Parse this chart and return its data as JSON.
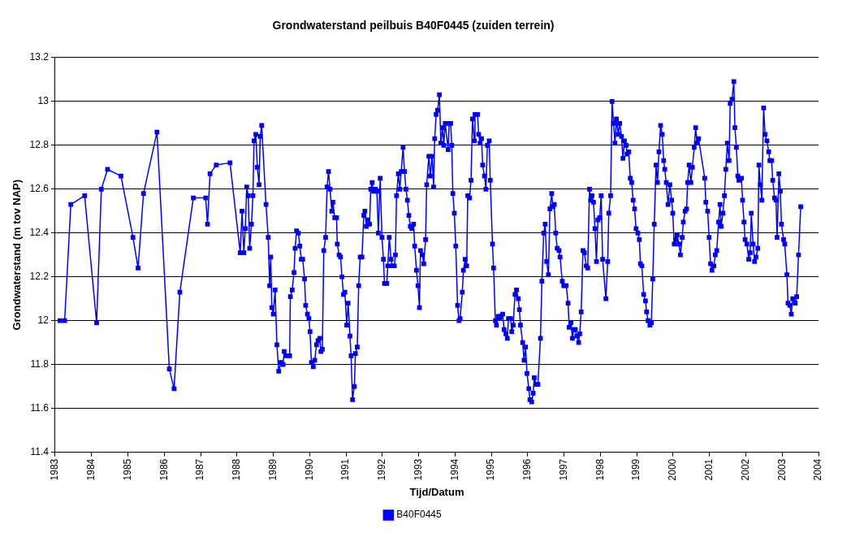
{
  "chart_data": {
    "type": "line",
    "title": "Grondwaterstand peilbuis B40F0445 (zuiden terrein)",
    "xlabel": "Tijd/Datum",
    "ylabel": "Grondwaterstand (m tov NAP)",
    "xlim": [
      1983,
      2004
    ],
    "xticks": [
      1983,
      1984,
      1985,
      1986,
      1987,
      1988,
      1989,
      1990,
      1991,
      1992,
      1993,
      1994,
      1995,
      1996,
      1997,
      1998,
      1999,
      2000,
      2001,
      2002,
      2003,
      2004
    ],
    "ylim": [
      11.4,
      13.2
    ],
    "yticks": [
      11.4,
      11.6,
      11.8,
      12,
      12.2,
      12.4,
      12.6,
      12.8,
      13,
      13.2
    ],
    "grid": "y",
    "legend": "bottom",
    "marker": "square",
    "line_style": "solid",
    "series": [
      {
        "name": "B40F0445",
        "color": "#0000ff",
        "x": [
          1983.13,
          1983.26,
          1983.43,
          1983.81,
          1984.14,
          1984.27,
          1984.44,
          1984.81,
          1985.14,
          1985.28,
          1985.43,
          1985.8,
          1986.14,
          1986.27,
          1986.43,
          1986.8,
          1987.14,
          1987.19,
          1987.26,
          1987.43,
          1987.81,
          1988.09,
          1988.14,
          1988.19,
          1988.23,
          1988.27,
          1988.31,
          1988.35,
          1988.4,
          1988.44,
          1988.47,
          1988.52,
          1988.56,
          1988.61,
          1988.64,
          1988.68,
          1988.8,
          1988.86,
          1988.9,
          1988.93,
          1988.96,
          1989,
          1989.05,
          1989.1,
          1989.15,
          1989.21,
          1989.27,
          1989.3,
          1989.36,
          1989.45,
          1989.47,
          1989.52,
          1989.57,
          1989.6,
          1989.64,
          1989.69,
          1989.73,
          1989.77,
          1989.81,
          1989.86,
          1989.89,
          1989.94,
          1989.98,
          1990.01,
          1990.05,
          1990.1,
          1990.14,
          1990.19,
          1990.23,
          1990.28,
          1990.31,
          1990.35,
          1990.39,
          1990.44,
          1990.48,
          1990.52,
          1990.56,
          1990.61,
          1990.64,
          1990.69,
          1990.74,
          1990.76,
          1990.81,
          1990.85,
          1990.89,
          1990.93,
          1990.97,
          1991.02,
          1991.06,
          1991.11,
          1991.14,
          1991.18,
          1991.23,
          1991.26,
          1991.31,
          1991.35,
          1991.39,
          1991.44,
          1991.49,
          1991.52,
          1991.56,
          1991.6,
          1991.65,
          1991.68,
          1991.72,
          1991.76,
          1991.81,
          1991.85,
          1991.89,
          1991.94,
          1991.99,
          1992.03,
          1992.06,
          1992.12,
          1992.15,
          1992.19,
          1992.24,
          1992.27,
          1992.33,
          1992.36,
          1992.39,
          1992.44,
          1992.48,
          1992.52,
          1992.57,
          1992.61,
          1992.65,
          1992.69,
          1992.73,
          1992.77,
          1992.81,
          1992.86,
          1992.89,
          1992.94,
          1992.98,
          1993.02,
          1993.05,
          1993.1,
          1993.14,
          1993.19,
          1993.22,
          1993.28,
          1993.32,
          1993.37,
          1993.41,
          1993.44,
          1993.48,
          1993.52,
          1993.57,
          1993.61,
          1993.66,
          1993.69,
          1993.73,
          1993.81,
          1993.84,
          1993.88,
          1993.91,
          1993.94,
          1993.98,
          1994.02,
          1994.07,
          1994.11,
          1994.14,
          1994.2,
          1994.23,
          1994.28,
          1994.32,
          1994.35,
          1994.4,
          1994.44,
          1994.48,
          1994.53,
          1994.55,
          1994.62,
          1994.65,
          1994.69,
          1994.73,
          1994.76,
          1994.81,
          1994.85,
          1994.89,
          1994.94,
          1994.97,
          1995.03,
          1995.06,
          1995.11,
          1995.14,
          1995.19,
          1995.23,
          1995.26,
          1995.31,
          1995.35,
          1995.4,
          1995.44,
          1995.47,
          1995.53,
          1995.56,
          1995.6,
          1995.65,
          1995.69,
          1995.74,
          1995.77,
          1995.8,
          1995.86,
          1995.9,
          1995.94,
          1995.98,
          1996.03,
          1996.06,
          1996.11,
          1996.15,
          1996.18,
          1996.23,
          1996.28,
          1996.35,
          1996.39,
          1996.44,
          1996.48,
          1996.52,
          1996.57,
          1996.61,
          1996.66,
          1996.69,
          1996.73,
          1996.77,
          1996.81,
          1996.86,
          1996.89,
          1996.95,
          1996.99,
          1997.06,
          1997.11,
          1997.14,
          1997.19,
          1997.23,
          1997.27,
          1997.31,
          1997.35,
          1997.4,
          1997.43,
          1997.47,
          1997.52,
          1997.56,
          1997.61,
          1997.65,
          1997.7,
          1997.73,
          1997.77,
          1997.81,
          1997.85,
          1997.89,
          1997.93,
          1997.98,
          1998.02,
          1998.06,
          1998.15,
          1998.2,
          1998.23,
          1998.28,
          1998.32,
          1998.36,
          1998.4,
          1998.44,
          1998.49,
          1998.53,
          1998.58,
          1998.62,
          1998.66,
          1998.71,
          1998.73,
          1998.78,
          1998.82,
          1998.86,
          1998.9,
          1998.94,
          1998.98,
          1999.03,
          1999.07,
          1999.1,
          1999.14,
          1999.19,
          1999.24,
          1999.27,
          1999.31,
          1999.36,
          1999.4,
          1999.44,
          1999.48,
          1999.53,
          1999.57,
          1999.61,
          1999.655,
          1999.7,
          1999.74,
          1999.77,
          1999.81,
          1999.86,
          1999.91,
          1999.96,
          1999.99,
          2000.03,
          2000.07,
          2000.11,
          2000.16,
          2000.2,
          2000.25,
          2000.28,
          2000.33,
          2000.37,
          2000.4,
          2000.44,
          2000.49,
          2000.53,
          2000.58,
          2000.62,
          2000.66,
          2000.7,
          2000.87,
          2000.9,
          2000.95,
          2000.99,
          2001.03,
          2001.07,
          2001.12,
          2001.16,
          2001.2,
          2001.25,
          2001.29,
          2001.32,
          2001.37,
          2001.41,
          2001.45,
          2001.49,
          2001.54,
          2001.57,
          2001.62,
          2001.67,
          2001.7,
          2001.74,
          2001.78,
          2001.81,
          2001.88,
          2001.91,
          2001.95,
          2001.98,
          2002.03,
          2002.08,
          2002.12,
          2002.15,
          2002.2,
          2002.24,
          2002.28,
          2002.33,
          2002.36,
          2002.4,
          2002.44,
          2002.49,
          2002.53,
          2002.58,
          2002.63,
          2002.66,
          2002.71,
          2002.74,
          2002.79,
          2002.83,
          2002.86,
          2002.91,
          2002.95,
          2002.98,
          2003.04,
          2003.07,
          2003.13,
          2003.16,
          2003.21,
          2003.25,
          2003.29,
          2003.36,
          2003.4,
          2003.45,
          2003.51
        ],
        "values": [
          12,
          12,
          12.53,
          12.57,
          11.99,
          12.6,
          12.69,
          12.66,
          12.38,
          12.24,
          12.58,
          12.86,
          11.78,
          11.69,
          12.13,
          12.56,
          12.56,
          12.44,
          12.67,
          12.71,
          12.72,
          12.31,
          12.5,
          12.31,
          12.42,
          12.61,
          12.57,
          12.33,
          12.44,
          12.57,
          12.82,
          12.85,
          12.7,
          12.62,
          12.84,
          12.89,
          12.53,
          12.38,
          12.16,
          12.29,
          12.06,
          12.03,
          12.14,
          11.89,
          11.77,
          11.81,
          11.8,
          11.86,
          11.84,
          11.84,
          12.11,
          12.14,
          12.22,
          12.33,
          12.41,
          12.4,
          12.34,
          12.28,
          12.28,
          12.19,
          12.07,
          12.03,
          12.01,
          11.95,
          11.81,
          11.79,
          11.82,
          11.89,
          11.91,
          11.92,
          11.86,
          11.87,
          12.32,
          12.38,
          12.61,
          12.68,
          12.6,
          12.5,
          12.54,
          12.47,
          12.47,
          12.35,
          12.3,
          12.29,
          12.2,
          12.12,
          12.13,
          11.98,
          12.08,
          11.93,
          11.84,
          11.64,
          11.7,
          11.85,
          11.88,
          12.16,
          12.29,
          12.29,
          12.48,
          12.5,
          12.43,
          12.46,
          12.44,
          12.6,
          12.63,
          12.59,
          12.6,
          12.59,
          12.4,
          12.65,
          12.38,
          12.28,
          12.17,
          12.17,
          12.25,
          12.38,
          12.28,
          12.25,
          12.25,
          12.3,
          12.57,
          12.67,
          12.6,
          12.68,
          12.79,
          12.68,
          12.6,
          12.55,
          12.48,
          12.43,
          12.42,
          12.44,
          12.34,
          12.23,
          12.16,
          12.06,
          12.32,
          12.3,
          12.26,
          12.37,
          12.62,
          12.75,
          12.66,
          12.75,
          12.61,
          12.83,
          12.94,
          12.96,
          13.03,
          12.81,
          12.88,
          12.8,
          12.9,
          12.78,
          12.9,
          12.9,
          12.8,
          12.58,
          12.49,
          12.34,
          12.07,
          12,
          12.01,
          12.13,
          12.23,
          12.28,
          12.25,
          12.57,
          12.56,
          12.64,
          12.92,
          12.82,
          12.94,
          12.94,
          12.85,
          12.81,
          12.83,
          12.71,
          12.66,
          12.6,
          12.8,
          12.82,
          12.64,
          12.35,
          12.24,
          12,
          11.98,
          12.02,
          12.01,
          12.02,
          12.03,
          11.96,
          11.94,
          11.92,
          12.01,
          12.01,
          11.95,
          11.98,
          12.12,
          12.14,
          12.1,
          12.05,
          11.98,
          11.9,
          11.82,
          11.88,
          11.76,
          11.69,
          11.64,
          11.63,
          11.67,
          11.74,
          11.71,
          11.71,
          11.92,
          12.18,
          12.4,
          12.44,
          12.27,
          12.21,
          12.51,
          12.58,
          12.52,
          12.53,
          12.4,
          12.33,
          12.32,
          12.29,
          12.18,
          12.16,
          12.16,
          12.08,
          11.97,
          11.99,
          11.92,
          11.96,
          11.96,
          11.93,
          11.9,
          11.94,
          12.04,
          12.32,
          12.31,
          12.25,
          12.24,
          12.6,
          12.55,
          12.57,
          12.54,
          12.42,
          12.27,
          12.46,
          12.47,
          12.57,
          12.28,
          12.1,
          12.27,
          12.49,
          12.57,
          13,
          12.9,
          12.81,
          12.92,
          12.85,
          12.9,
          12.84,
          12.74,
          12.82,
          12.8,
          12.76,
          12.77,
          12.65,
          12.63,
          12.55,
          12.51,
          12.42,
          12.4,
          12.37,
          12.26,
          12.25,
          12.12,
          12.09,
          12.04,
          12,
          11.98,
          11.99,
          12.19,
          12.44,
          12.71,
          12.63,
          12.77,
          12.89,
          12.85,
          12.73,
          12.69,
          12.63,
          12.53,
          12.62,
          12.55,
          12.49,
          12.35,
          12.37,
          12.39,
          12.35,
          12.3,
          12.38,
          12.45,
          12.5,
          12.51,
          12.63,
          12.71,
          12.63,
          12.7,
          12.79,
          12.88,
          12.81,
          12.83,
          12.65,
          12.54,
          12.5,
          12.38,
          12.26,
          12.23,
          12.25,
          12.3,
          12.32,
          12.45,
          12.53,
          12.43,
          12.49,
          12.57,
          12.69,
          12.81,
          12.73,
          12.99,
          13.01,
          13.09,
          12.88,
          12.79,
          12.66,
          12.64,
          12.65,
          12.55,
          12.45,
          12.37,
          12.35,
          12.28,
          12.31,
          12.49,
          12.35,
          12.27,
          12.29,
          12.33,
          12.71,
          12.62,
          12.55,
          12.97,
          12.85,
          12.82,
          12.77,
          12.73,
          12.73,
          12.64,
          12.56,
          12.55,
          12.38,
          12.67,
          12.59,
          12.44,
          12.37,
          12.35,
          12.21,
          12.08,
          12.07,
          12.03,
          12.1,
          12.08,
          12.11,
          12.3,
          12.52
        ]
      }
    ]
  }
}
